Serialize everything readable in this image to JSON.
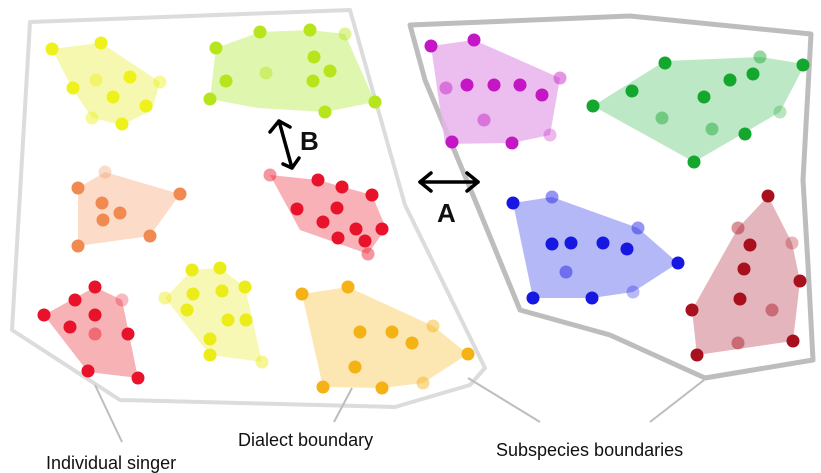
{
  "labels": {
    "individual_singer": "Individual singer",
    "dialect_boundary": "Dialect boundary",
    "subspecies_boundaries": "Subspecies boundaries",
    "arrow_a": "A",
    "arrow_b": "B"
  },
  "colors": {
    "boundary_stroke": "#dcdcdc",
    "boundary_stroke_right": "#bdbdbd",
    "leader_line": "#bdbdbd",
    "arrow": "#000000"
  },
  "dialects": [
    {
      "name": "yellow-top-left",
      "fill": "#f3f7a0",
      "dot": "#eef21a"
    },
    {
      "name": "lime-top-center",
      "fill": "#d9f5a0",
      "dot": "#b7e51c"
    },
    {
      "name": "peach-mid-left",
      "fill": "#fbd6c0",
      "dot": "#f08a50"
    },
    {
      "name": "red-mid-center",
      "fill": "#f7a3aa",
      "dot": "#e8132a"
    },
    {
      "name": "red-bottom-left",
      "fill": "#f6a4a8",
      "dot": "#e8132a"
    },
    {
      "name": "yellow-bottom-center",
      "fill": "#f7f7a8",
      "dot": "#ecec18"
    },
    {
      "name": "gold-bottom-center",
      "fill": "#fbe2a4",
      "dot": "#f4b215"
    },
    {
      "name": "magenta-top-right",
      "fill": "#e8b3ec",
      "dot": "#c416c4"
    },
    {
      "name": "green-top-right",
      "fill": "#b2e4bc",
      "dot": "#13a72e"
    },
    {
      "name": "blue-bottom-right",
      "fill": "#a8acf4",
      "dot": "#1717e2"
    },
    {
      "name": "crimson-bottom-right",
      "fill": "#dfa8b0",
      "dot": "#a8101e"
    }
  ]
}
